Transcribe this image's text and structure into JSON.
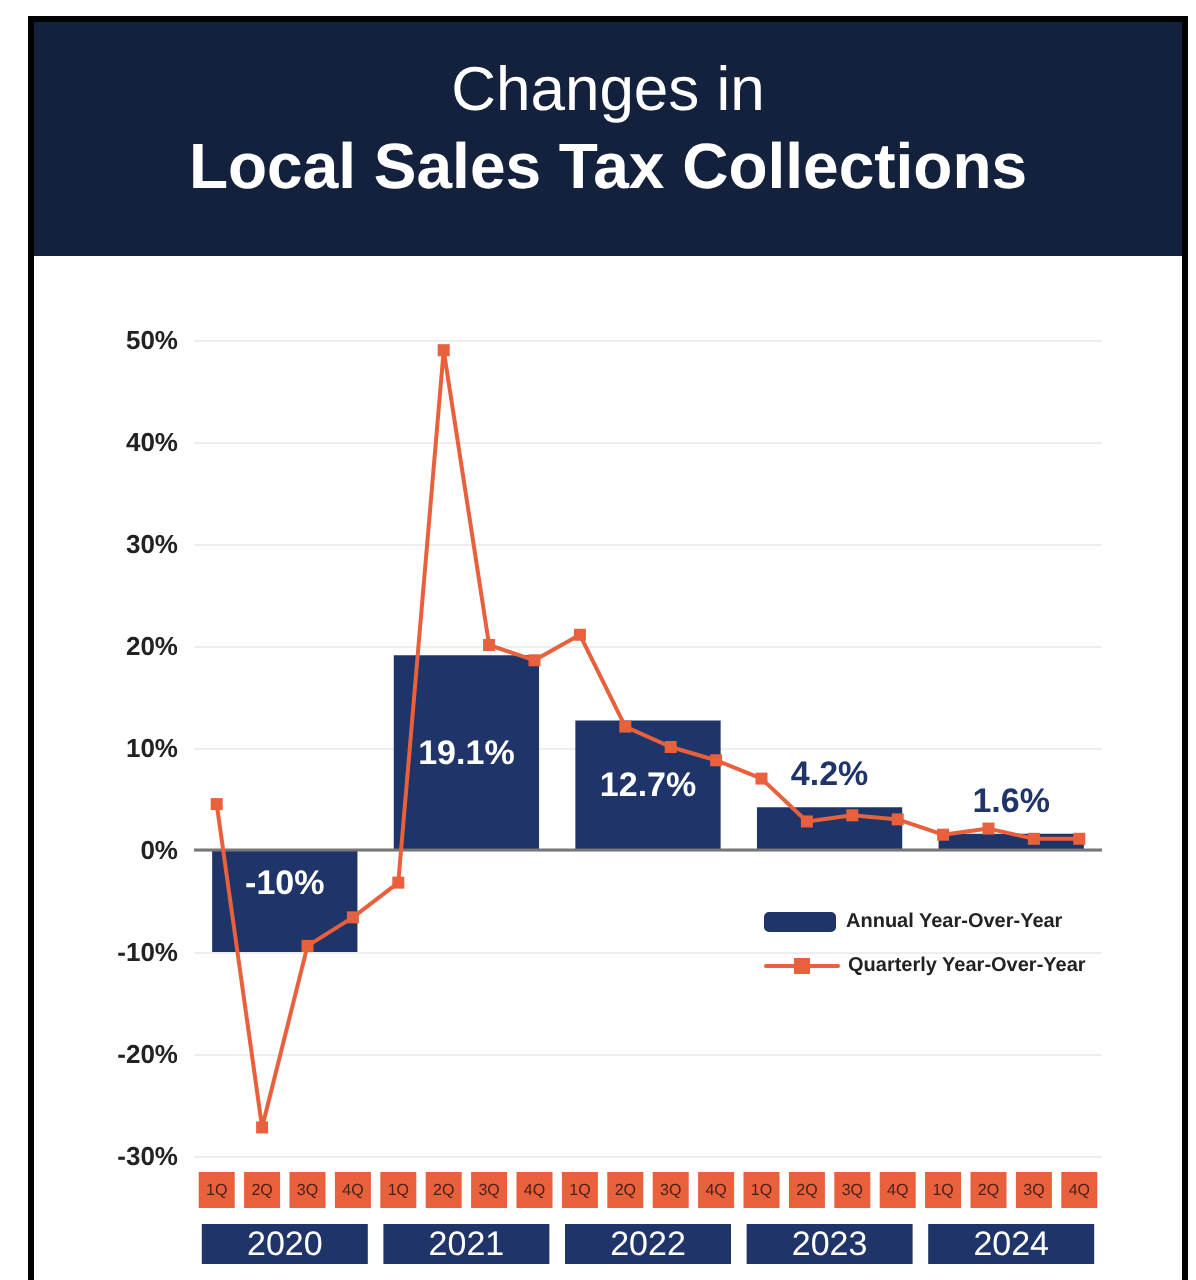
{
  "chart_data": [
    {
      "type": "bar",
      "title": "Changes in",
      "subtitle": "Local Sales Tax Collections",
      "categories": [
        "2020",
        "2021",
        "2022",
        "2023",
        "2024"
      ],
      "series": [
        {
          "name": "Annual Year-Over-Year",
          "color": "#1f3468",
          "values": [
            -10,
            19.1,
            12.7,
            4.2,
            1.6
          ],
          "value_labels": [
            "-10%",
            "19.1%",
            "12.7%",
            "4.2%",
            "1.6%"
          ]
        }
      ],
      "ylim": [
        -30,
        50
      ],
      "yticks": [
        {
          "value": -30,
          "label": "-30%"
        },
        {
          "value": -20,
          "label": "-20%"
        },
        {
          "value": -10,
          "label": "-10%"
        },
        {
          "value": 0,
          "label": "0%"
        },
        {
          "value": 10,
          "label": "10%"
        },
        {
          "value": 20,
          "label": "20%"
        },
        {
          "value": 30,
          "label": "30%"
        },
        {
          "value": 40,
          "label": "40%"
        },
        {
          "value": 50,
          "label": "50%"
        }
      ],
      "grid": "y",
      "legend": "bottom right"
    },
    {
      "type": "line",
      "categories": [
        "1Q",
        "2Q",
        "3Q",
        "4Q",
        "1Q",
        "2Q",
        "3Q",
        "4Q",
        "1Q",
        "2Q",
        "3Q",
        "4Q",
        "1Q",
        "2Q",
        "3Q",
        "4Q",
        "1Q",
        "2Q",
        "3Q",
        "4Q"
      ],
      "series": [
        {
          "name": "Quarterly Year-Over-Year",
          "color": "#e8603c",
          "values": [
            4.5,
            -27.2,
            -9.4,
            -6.6,
            -3.2,
            49,
            20.1,
            18.6,
            21.1,
            12.1,
            10.1,
            8.8,
            7.0,
            2.8,
            3.4,
            3.0,
            1.5,
            2.1,
            1.1,
            1.1
          ]
        }
      ],
      "ylim": [
        -30,
        50
      ],
      "tick_labels": "x",
      "legend": "bottom right",
      "marker": "square",
      "line_style": "solid"
    }
  ]
}
